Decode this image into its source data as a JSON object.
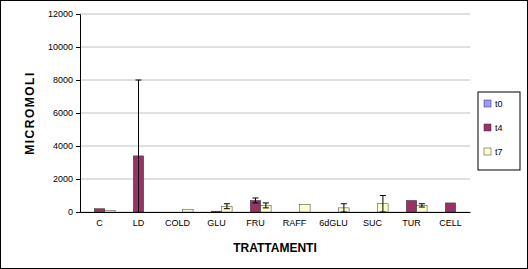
{
  "chart_data": {
    "type": "bar",
    "x_label": "TRATTAMENTI",
    "y_label": "MICROMOLI",
    "categories": [
      "C",
      "LD",
      "COLD",
      "GLU",
      "FRU",
      "RAFF",
      "6dGLU",
      "SUC",
      "TUR",
      "CELL"
    ],
    "series": [
      {
        "name": "t0",
        "color": "#9999ff",
        "values": [
          0,
          0,
          0,
          0,
          0,
          0,
          0,
          0,
          0,
          0
        ],
        "errors": [
          null,
          null,
          null,
          null,
          null,
          null,
          null,
          null,
          null,
          null
        ]
      },
      {
        "name": "t4",
        "color": "#993366",
        "values": [
          200,
          3400,
          0,
          50,
          700,
          0,
          0,
          0,
          700,
          550
        ],
        "errors": [
          null,
          4600,
          null,
          null,
          150,
          null,
          null,
          null,
          null,
          null
        ]
      },
      {
        "name": "t7",
        "color": "#ffffcc",
        "values": [
          100,
          0,
          150,
          350,
          400,
          450,
          250,
          500,
          400,
          0
        ],
        "errors": [
          null,
          null,
          null,
          150,
          150,
          null,
          250,
          500,
          100,
          null
        ]
      }
    ],
    "ylim": [
      0,
      12000
    ],
    "yticks": [
      0,
      2000,
      4000,
      6000,
      8000,
      10000,
      12000
    ],
    "grid": true,
    "legend": "right"
  }
}
